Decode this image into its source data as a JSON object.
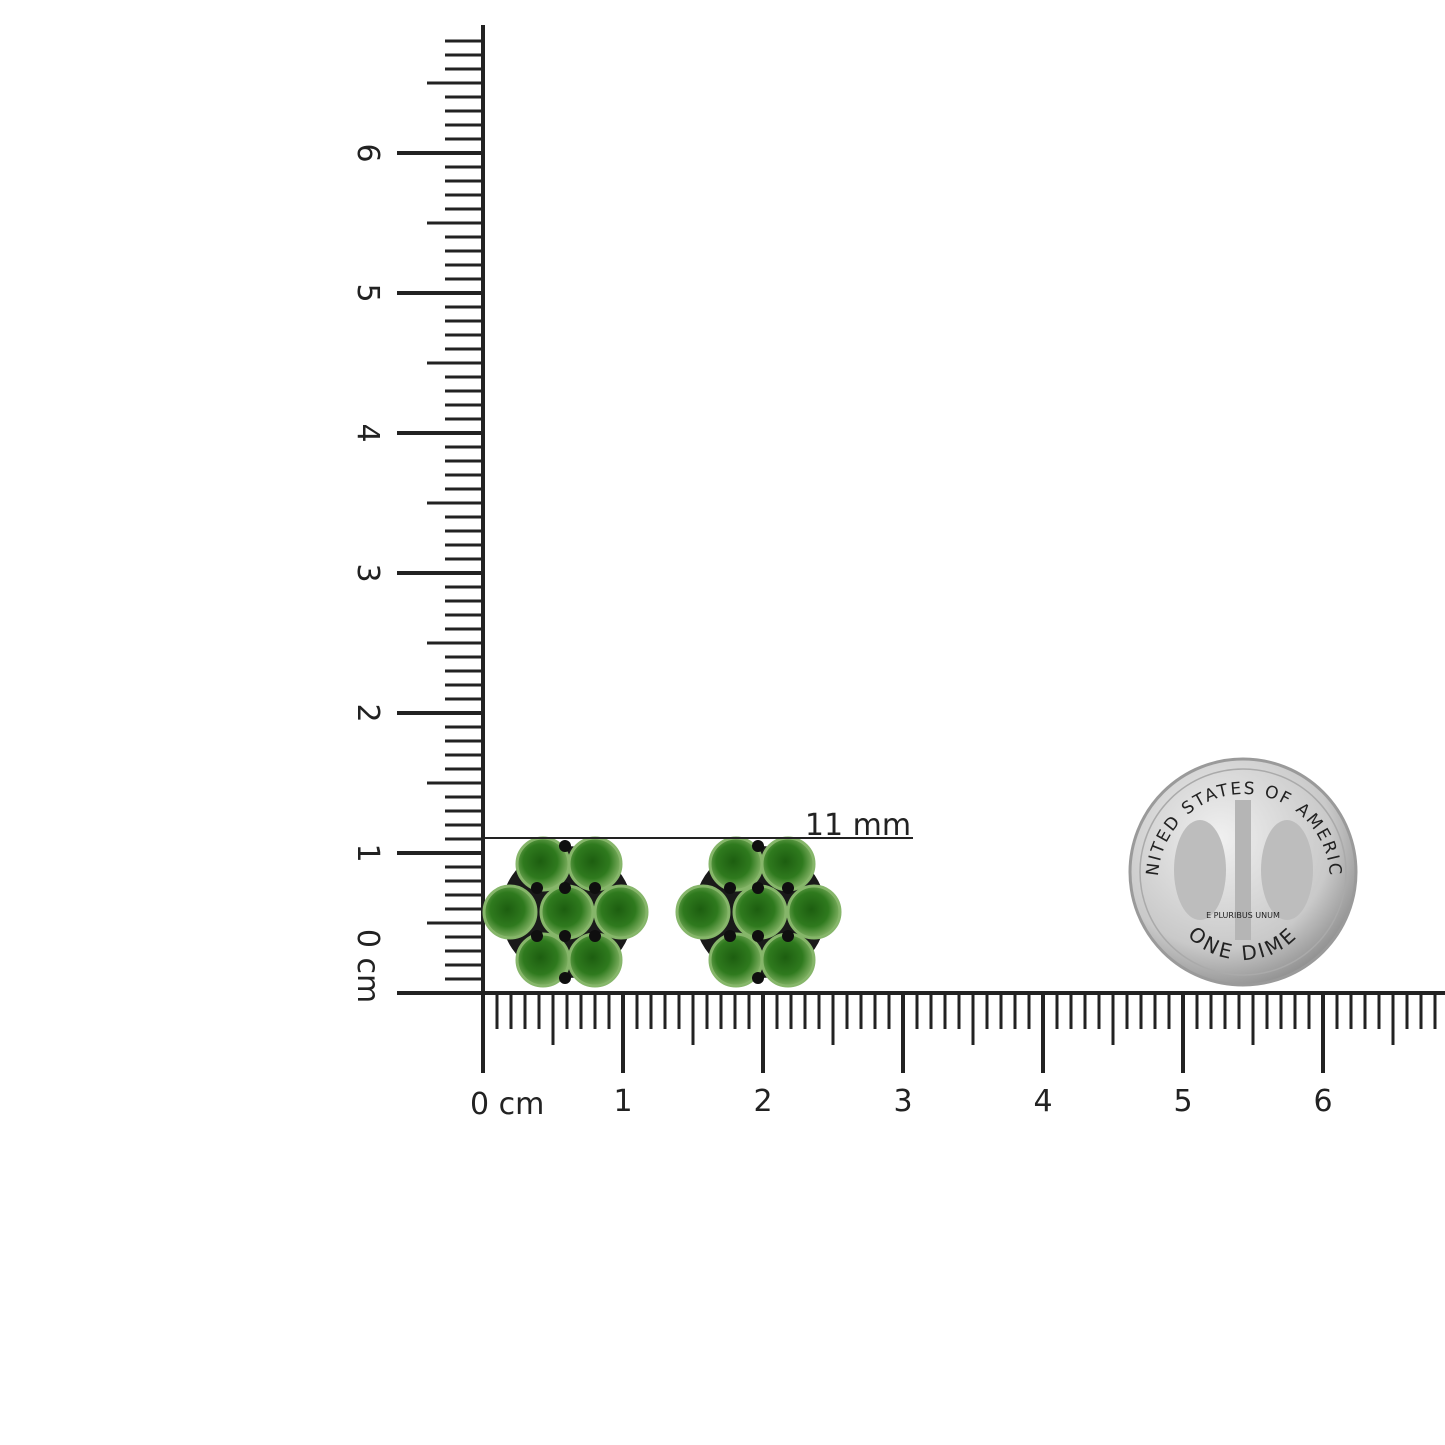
{
  "rulers": {
    "unit": "cm",
    "vertical_labels": [
      "0 cm",
      "1",
      "2",
      "3",
      "4",
      "5",
      "6"
    ],
    "horizontal_labels": [
      "0 cm",
      "1",
      "2",
      "3",
      "4",
      "5",
      "6"
    ]
  },
  "measurement": {
    "label": "11 mm",
    "value_mm": 11
  },
  "product": {
    "name": "green diamond flower cluster stud earrings",
    "stones_per_earring": 7,
    "stone_colors": [
      "#2f7a1e",
      "#6fa553",
      "#0f0f0f"
    ]
  },
  "coin": {
    "top_text": "UNITED STATES OF AMERICA",
    "bottom_text": "ONE DIME",
    "motto": "E PLURIBUS UNUM",
    "color": "#c9c9c9"
  },
  "colors": {
    "ruler": "#222222",
    "background": "#ffffff"
  }
}
